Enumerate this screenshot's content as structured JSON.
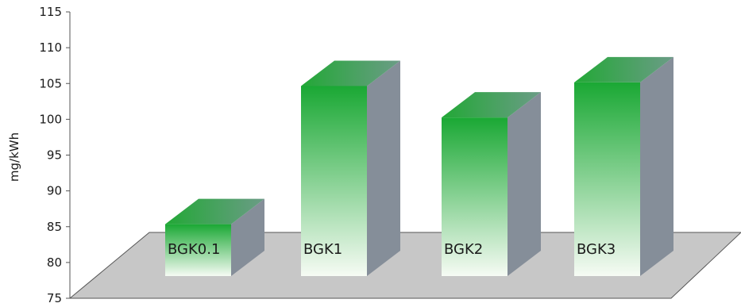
{
  "chart_data": {
    "type": "bar",
    "categories": [
      "BGK0.1",
      "BGK1",
      "BGK2",
      "BGK3"
    ],
    "values": [
      85.9,
      105.2,
      100.8,
      105.7
    ],
    "ylabel": "mg/kWh",
    "ylim": [
      75,
      115
    ],
    "yticks": [
      75,
      80,
      85,
      90,
      95,
      100,
      105,
      110,
      115
    ],
    "grid": false,
    "colors": {
      "bar_front_top": "#1aa834",
      "bar_front_bottom": "#f6fbf4",
      "bar_side": "#858e99",
      "bar_top": "#3ea04a",
      "floor": "#c7c7c7"
    }
  }
}
